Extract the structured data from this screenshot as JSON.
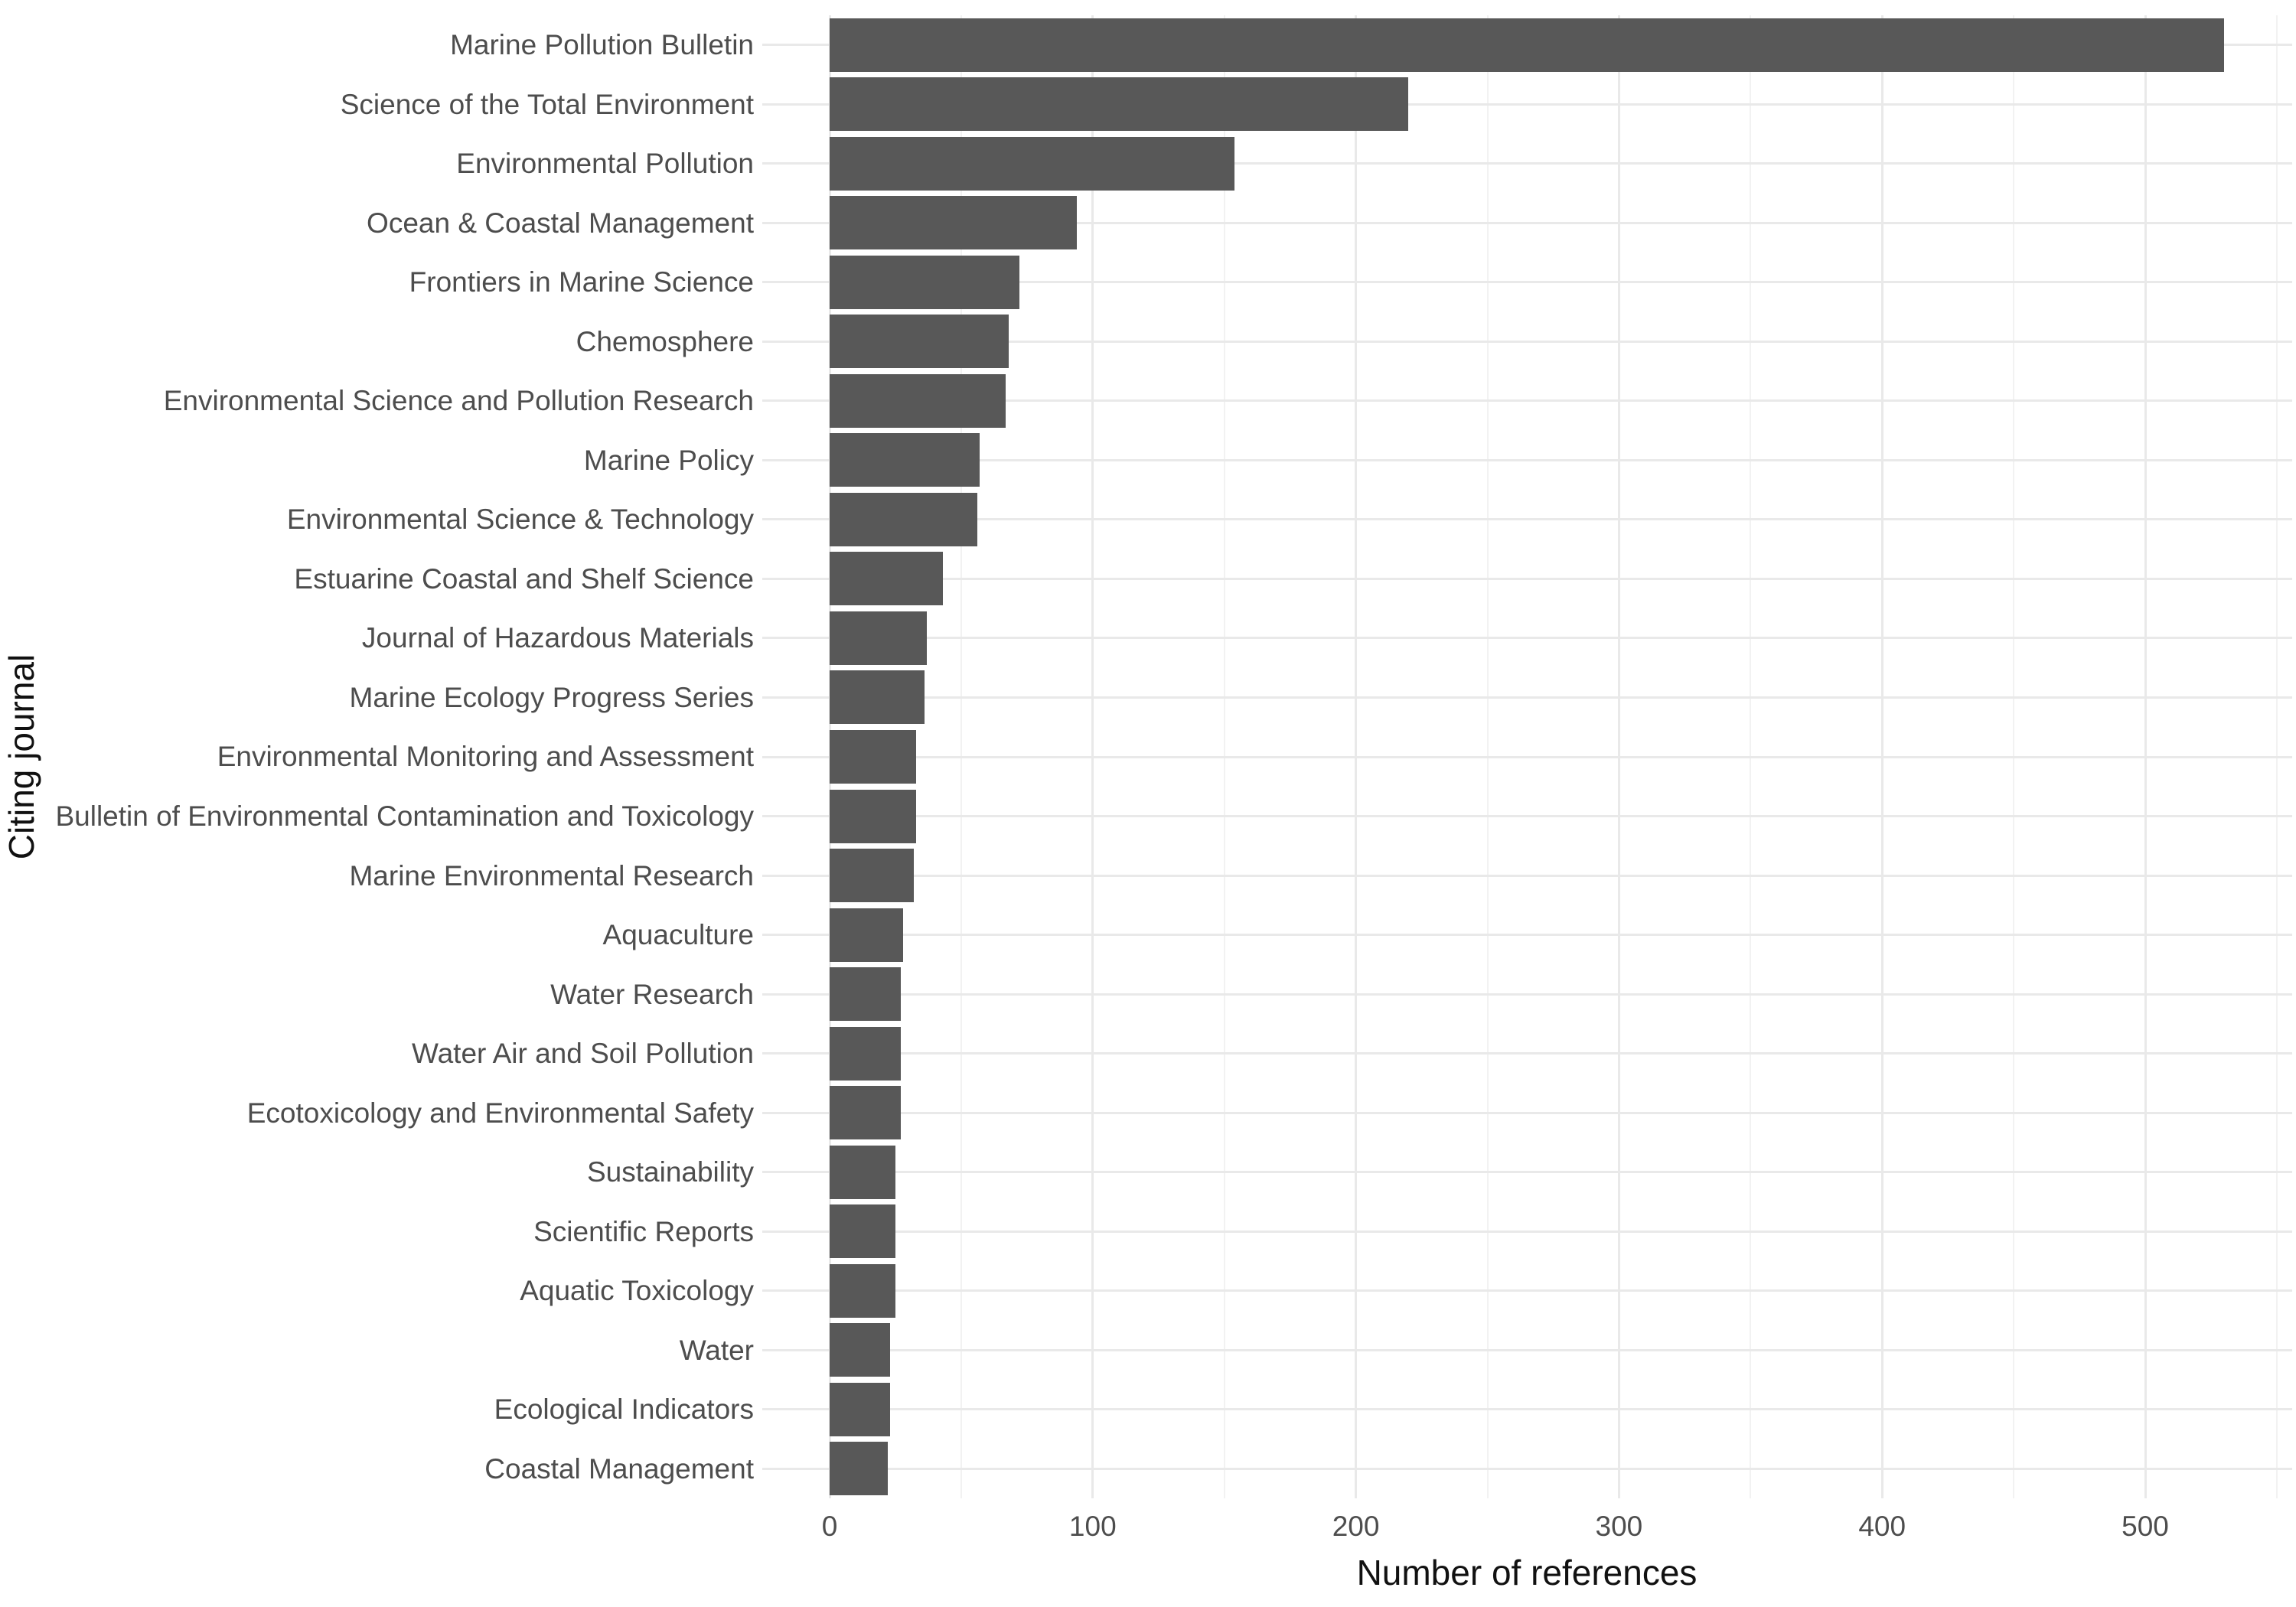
{
  "chart_data": {
    "type": "bar",
    "orientation": "horizontal",
    "title": "",
    "xlabel": "Number of references",
    "ylabel": "Citing journal",
    "categories": [
      "Marine Pollution Bulletin",
      "Science of the Total Environment",
      "Environmental Pollution",
      "Ocean & Coastal Management",
      "Frontiers in Marine Science",
      "Chemosphere",
      "Environmental Science and Pollution Research",
      "Marine Policy",
      "Environmental Science & Technology",
      "Estuarine Coastal and Shelf Science",
      "Journal of Hazardous Materials",
      "Marine Ecology Progress Series",
      "Environmental Monitoring and Assessment",
      "Bulletin of Environmental Contamination and Toxicology",
      "Marine Environmental Research",
      "Aquaculture",
      "Water Research",
      "Water Air and Soil Pollution",
      "Ecotoxicology and Environmental Safety",
      "Sustainability",
      "Scientific Reports",
      "Aquatic Toxicology",
      "Water",
      "Ecological Indicators",
      "Coastal Management"
    ],
    "values": [
      530,
      220,
      154,
      94,
      72,
      68,
      67,
      57,
      56,
      43,
      37,
      36,
      33,
      33,
      32,
      28,
      27,
      27,
      27,
      25,
      25,
      25,
      23,
      23,
      22
    ],
    "x_ticks": [
      0,
      100,
      200,
      300,
      400,
      500
    ],
    "x_minor_gridlines": [
      50,
      150,
      250,
      350,
      450,
      550
    ],
    "xlim": [
      -26,
      556
    ],
    "grid": "on",
    "legend_position": "none",
    "colors": {
      "bar": "#585858",
      "grid_major": "#e9e9e9",
      "grid_minor": "#f2f2f2",
      "tick_label": "#4d4d4d",
      "axis_title": "#111111",
      "background": "#ffffff"
    }
  }
}
